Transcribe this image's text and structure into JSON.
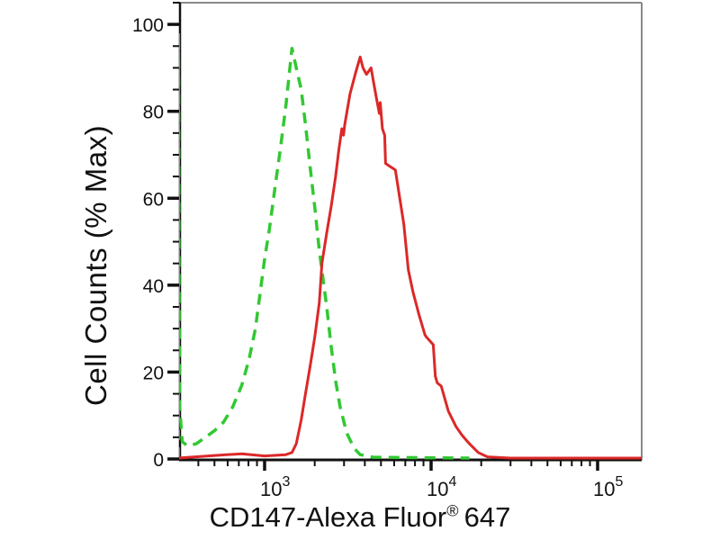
{
  "figure": {
    "background": "#ffffff",
    "text_color": "#111111",
    "axis_color": "#111111",
    "border_color": "#8a8a8a"
  },
  "chart_data": {
    "type": "line",
    "chart_kind": "flow-cytometry-histogram-overlay",
    "title": "",
    "xlabel": {
      "prefix": "CD147-Alexa Fluor",
      "registered_mark": "®",
      "suffix": " 647",
      "full_text": "CD147-Alexa Fluor® 647"
    },
    "ylabel": "Cell Counts (% Max)",
    "grid": false,
    "legend": "none",
    "x_axis": {
      "scale": "log10",
      "range_approx": [
        310,
        184000
      ],
      "major_ticks": [
        {
          "value": 1000,
          "base": "10",
          "exponent": "3"
        },
        {
          "value": 10000,
          "base": "10",
          "exponent": "4"
        },
        {
          "value": 100000,
          "base": "10",
          "exponent": "5"
        }
      ],
      "minor_ticks": [
        400,
        500,
        600,
        700,
        800,
        900,
        2000,
        3000,
        4000,
        5000,
        6000,
        7000,
        8000,
        9000,
        20000,
        30000,
        40000,
        50000,
        60000,
        70000,
        80000,
        90000
      ]
    },
    "y_axis": {
      "range": [
        0,
        105
      ],
      "major_ticks": [
        0,
        20,
        40,
        60,
        80,
        100
      ],
      "minor_tick_step": 5
    },
    "series": [
      {
        "name": "green-dashed-histogram",
        "style": "dashed",
        "color": "#32c832",
        "stroke_width": 3.5,
        "dash": [
          12,
          8
        ],
        "points": [
          [
            303,
            0.2
          ],
          [
            304,
            98
          ],
          [
            306,
            45
          ],
          [
            309,
            12
          ],
          [
            320,
            4
          ],
          [
            344,
            3
          ],
          [
            389,
            3.5
          ],
          [
            441,
            5
          ],
          [
            500,
            6.5
          ],
          [
            567,
            8.5
          ],
          [
            644,
            12
          ],
          [
            730,
            17
          ],
          [
            807,
            23
          ],
          [
            881,
            30
          ],
          [
            939,
            38
          ],
          [
            1000,
            46
          ],
          [
            1070,
            53
          ],
          [
            1160,
            63
          ],
          [
            1240,
            71
          ],
          [
            1340,
            81
          ],
          [
            1410,
            89
          ],
          [
            1460,
            94.5
          ],
          [
            1550,
            90
          ],
          [
            1660,
            85
          ],
          [
            1760,
            77
          ],
          [
            1880,
            67
          ],
          [
            2000,
            58
          ],
          [
            2130,
            48
          ],
          [
            2360,
            35
          ],
          [
            2510,
            26
          ],
          [
            2670,
            18
          ],
          [
            2840,
            12
          ],
          [
            3110,
            6
          ],
          [
            3440,
            2.5
          ],
          [
            3750,
            1
          ],
          [
            4500,
            0.4
          ],
          [
            17000,
            0.2
          ]
        ]
      },
      {
        "name": "red-solid-histogram",
        "style": "solid",
        "color": "#dc2828",
        "stroke_width": 3,
        "points": [
          [
            303,
            0.2
          ],
          [
            500,
            0.8
          ],
          [
            730,
            1.2
          ],
          [
            1000,
            0.7
          ],
          [
            1340,
            1
          ],
          [
            1460,
            1.5
          ],
          [
            1550,
            3.5
          ],
          [
            1660,
            9
          ],
          [
            1760,
            15
          ],
          [
            1880,
            21.5
          ],
          [
            2000,
            28
          ],
          [
            2130,
            36
          ],
          [
            2210,
            45
          ],
          [
            2360,
            52
          ],
          [
            2510,
            58
          ],
          [
            2670,
            65
          ],
          [
            2790,
            71
          ],
          [
            2910,
            76
          ],
          [
            2980,
            74.5
          ],
          [
            3030,
            77
          ],
          [
            3260,
            84
          ],
          [
            3530,
            89
          ],
          [
            3750,
            92.5
          ],
          [
            3900,
            90
          ],
          [
            4090,
            88.5
          ],
          [
            4360,
            90
          ],
          [
            4500,
            87
          ],
          [
            4700,
            83
          ],
          [
            4890,
            79.5
          ],
          [
            4950,
            82
          ],
          [
            5100,
            76
          ],
          [
            5260,
            74.5
          ],
          [
            5330,
            68
          ],
          [
            6100,
            66.5
          ],
          [
            6860,
            54
          ],
          [
            7300,
            43.5
          ],
          [
            7780,
            38.5
          ],
          [
            8490,
            33
          ],
          [
            9200,
            28.5
          ],
          [
            9400,
            28
          ],
          [
            10300,
            26.3
          ],
          [
            10600,
            19
          ],
          [
            10900,
            17.5
          ],
          [
            11500,
            16.8
          ],
          [
            12700,
            11
          ],
          [
            14100,
            7.5
          ],
          [
            15300,
            5.5
          ],
          [
            17000,
            3.5
          ],
          [
            19200,
            1.5
          ],
          [
            21800,
            0.5
          ],
          [
            30000,
            0.2
          ],
          [
            184000,
            0.2
          ]
        ]
      }
    ]
  }
}
